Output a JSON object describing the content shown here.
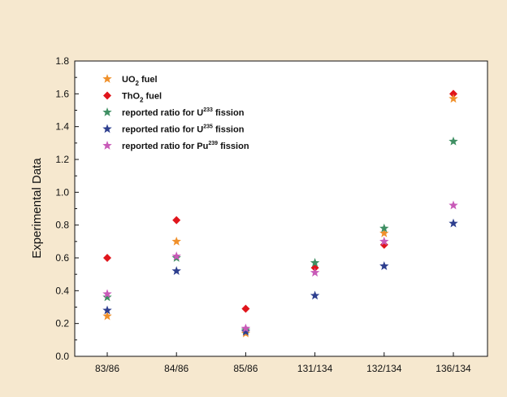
{
  "chart_data": {
    "type": "scatter",
    "categories": [
      "83/86",
      "84/86",
      "85/86",
      "131/134",
      "132/134",
      "136/134"
    ],
    "ylabel": "Experimental Data",
    "xlabel": "",
    "ylim": [
      0.0,
      1.8
    ],
    "yticks": [
      0.0,
      0.2,
      0.4,
      0.6,
      0.8,
      1.0,
      1.2,
      1.4,
      1.6,
      1.8
    ],
    "grid": false,
    "legend_position": "top-left",
    "series": [
      {
        "name": "UO2 fuel",
        "legend": {
          "pre": "UO",
          "sub": "2",
          "post": " fuel"
        },
        "marker": "star",
        "color": "#f0902a",
        "values": [
          0.245,
          0.7,
          0.14,
          null,
          0.75,
          1.57
        ]
      },
      {
        "name": "ThO2 fuel",
        "legend": {
          "pre": "ThO",
          "sub": "2",
          "post": " fuel"
        },
        "marker": "diamond",
        "color": "#e0151c",
        "values": [
          0.6,
          0.83,
          0.29,
          0.54,
          0.68,
          1.6
        ]
      },
      {
        "name": "reported ratio for U233 fission",
        "legend": {
          "pre": "reported ratio for U",
          "sup": "233",
          "post": " fission"
        },
        "marker": "star",
        "color": "#3f8f63",
        "values": [
          0.36,
          0.6,
          0.16,
          0.57,
          0.78,
          1.31
        ]
      },
      {
        "name": "reported ratio for U235 fission",
        "legend": {
          "pre": "reported ratio for U",
          "sup": "235",
          "post": " fission"
        },
        "marker": "star",
        "color": "#2e3f8f",
        "values": [
          0.28,
          0.52,
          0.15,
          0.37,
          0.55,
          0.81
        ]
      },
      {
        "name": "reported ratio for Pu239 fission",
        "legend": {
          "pre": "reported ratio for Pu",
          "sup": "239",
          "post": " fission"
        },
        "marker": "star",
        "color": "#c85ab8",
        "values": [
          0.38,
          0.61,
          0.17,
          0.51,
          0.7,
          0.92
        ]
      }
    ]
  }
}
